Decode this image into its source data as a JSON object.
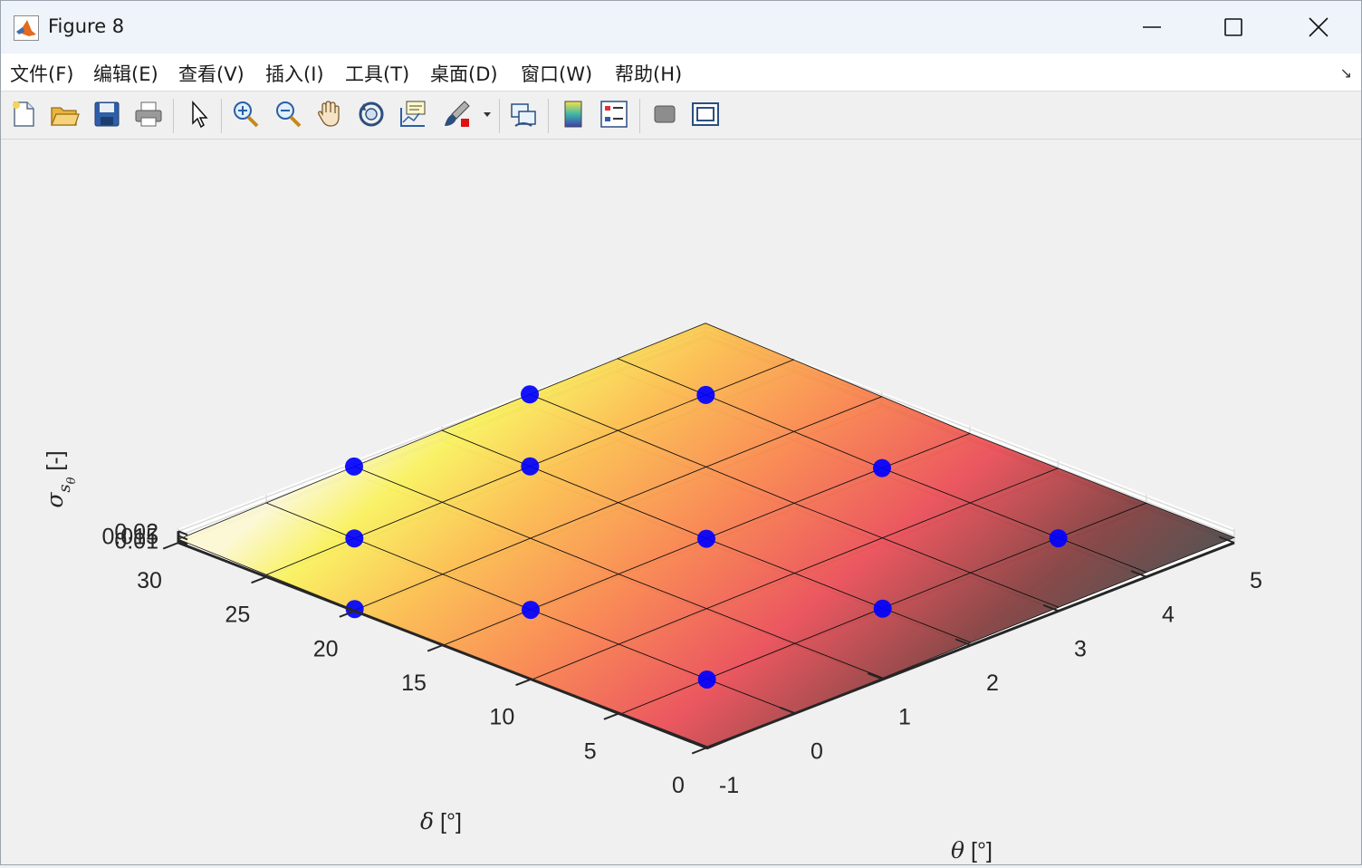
{
  "window": {
    "title": "Figure 8",
    "app_icon": "matlab-logo-icon",
    "controls": [
      "minimize-icon",
      "maximize-icon",
      "close-icon"
    ]
  },
  "menu": {
    "items": [
      "文件(F)",
      "编辑(E)",
      "查看(V)",
      "插入(I)",
      "工具(T)",
      "桌面(D)",
      "窗口(W)",
      "帮助(H)"
    ],
    "dock_arrow": "↘"
  },
  "toolbar": {
    "buttons": [
      "new-figure-icon",
      "open-file-icon",
      "save-icon",
      "print-icon",
      "select-arrow-icon",
      "zoom-in-icon",
      "zoom-out-icon",
      "pan-hand-icon",
      "rotate-3d-icon",
      "data-tips-icon",
      "brush-icon",
      "brush-dropdown-icon",
      "link-plot-icon",
      "colorbar-icon",
      "legend-icon",
      "hide-plot-tools-icon",
      "show-plot-tools-icon"
    ]
  },
  "chart_data": {
    "type": "surface3d",
    "x_label_symbol": "θ",
    "x_label_unit": "[°]",
    "y_label_symbol": "δ",
    "y_label_unit": "[°]",
    "z_label_symbol": "σ",
    "z_label_sub": "s",
    "z_label_subsub": "θ",
    "z_label_unit": "[-]",
    "x_ticks": [
      "-1",
      "0",
      "1",
      "2",
      "3",
      "4",
      "5"
    ],
    "y_ticks": [
      "0",
      "5",
      "10",
      "15",
      "20",
      "25",
      "30"
    ],
    "z_ticks": [
      "0.01",
      "0.015",
      "0.02"
    ],
    "x_range": [
      -1,
      5
    ],
    "y_range": [
      0,
      30
    ],
    "z_range": [
      0.01,
      0.02
    ],
    "grid": true,
    "colormap": "hot",
    "surface_grid_x": [
      -1,
      0,
      1,
      2,
      3,
      4,
      5
    ],
    "surface_grid_y": [
      0,
      5,
      10,
      15,
      20,
      25,
      30
    ],
    "surface_z": [
      [
        0.0058,
        0.0075,
        0.009,
        0.0104,
        0.0116,
        0.0126,
        0.0132
      ],
      [
        0.0062,
        0.0079,
        0.0094,
        0.0108,
        0.012,
        0.013,
        0.0136
      ],
      [
        0.0068,
        0.0086,
        0.0102,
        0.0116,
        0.0128,
        0.0138,
        0.0143
      ],
      [
        0.0072,
        0.009,
        0.0106,
        0.0121,
        0.0134,
        0.0144,
        0.015
      ],
      [
        0.0084,
        0.0105,
        0.0124,
        0.0141,
        0.0157,
        0.017,
        0.018
      ],
      [
        0.0098,
        0.0122,
        0.0144,
        0.0164,
        0.0182,
        0.0198,
        0.021
      ],
      [
        0.0112,
        0.0138,
        0.0162,
        0.0184,
        0.0204,
        0.0222,
        0.0236
      ]
    ],
    "points": [
      {
        "x": 0,
        "y": 5,
        "z": 0.0073
      },
      {
        "x": 2,
        "y": 5,
        "z": 0.0101
      },
      {
        "x": 4,
        "y": 5,
        "z": 0.0124
      },
      {
        "x": 0,
        "y": 15,
        "z": 0.0088
      },
      {
        "x": 2,
        "y": 15,
        "z": 0.0119
      },
      {
        "x": 4,
        "y": 15,
        "z": 0.0145
      },
      {
        "x": 0,
        "y": 25,
        "z": 0.0122
      },
      {
        "x": 2,
        "y": 25,
        "z": 0.0163
      },
      {
        "x": 4,
        "y": 25,
        "z": 0.0198
      },
      {
        "x": -1,
        "y": 20,
        "z": 0.0096
      },
      {
        "x": 1,
        "y": 30,
        "z": 0.0162
      },
      {
        "x": 3,
        "y": 30,
        "z": 0.0204
      }
    ],
    "point_color": "#0000ff"
  }
}
